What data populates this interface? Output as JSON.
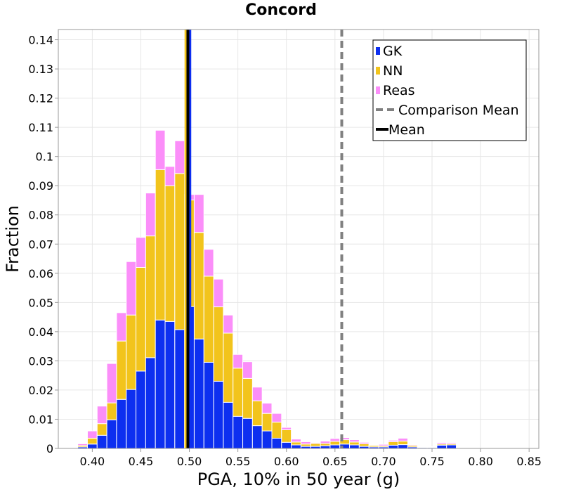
{
  "chart_data": {
    "type": "bar",
    "stacked": true,
    "title": "Concord",
    "xlabel": "PGA, 10% in 50 year (g)",
    "ylabel": "Fraction",
    "xlim": [
      0.365,
      0.86
    ],
    "ylim": [
      0,
      0.1435
    ],
    "bin_width": 0.01,
    "x_ticks": [
      "0.40",
      "0.45",
      "0.50",
      "0.55",
      "0.60",
      "0.65",
      "0.70",
      "0.75",
      "0.80",
      "0.85"
    ],
    "x_tick_values": [
      0.4,
      0.45,
      0.5,
      0.55,
      0.6,
      0.65,
      0.7,
      0.75,
      0.8,
      0.85
    ],
    "y_ticks": [
      "0",
      "0.01",
      "0.02",
      "0.03",
      "0.04",
      "0.05",
      "0.06",
      "0.07",
      "0.08",
      "0.09",
      "0.1",
      "0.11",
      "0.12",
      "0.13",
      "0.14"
    ],
    "y_tick_values": [
      0,
      0.01,
      0.02,
      0.03,
      0.04,
      0.05,
      0.06,
      0.07,
      0.08,
      0.09,
      0.1,
      0.11,
      0.12,
      0.13,
      0.14
    ],
    "bin_centers": [
      0.38,
      0.39,
      0.4,
      0.41,
      0.42,
      0.43,
      0.44,
      0.45,
      0.46,
      0.47,
      0.48,
      0.49,
      0.5,
      0.51,
      0.52,
      0.53,
      0.54,
      0.55,
      0.56,
      0.57,
      0.58,
      0.59,
      0.6,
      0.61,
      0.62,
      0.63,
      0.64,
      0.65,
      0.66,
      0.67,
      0.68,
      0.69,
      0.7,
      0.71,
      0.72,
      0.73,
      0.74,
      0.75,
      0.76,
      0.77,
      0.78,
      0.79,
      0.8,
      0.81,
      0.82,
      0.83,
      0.84
    ],
    "series": [
      {
        "name": "GK",
        "color": "#0d2ff0",
        "values": [
          0.0002,
          0.0005,
          0.0015,
          0.0045,
          0.0098,
          0.0168,
          0.0202,
          0.0265,
          0.0311,
          0.044,
          0.0435,
          0.0407,
          0.0486,
          0.0375,
          0.0295,
          0.023,
          0.0158,
          0.011,
          0.0103,
          0.0078,
          0.006,
          0.0035,
          0.0021,
          0.0012,
          0.0007,
          0.0007,
          0.0009,
          0.0012,
          0.0015,
          0.0012,
          0.0007,
          0.0005,
          0.0005,
          0.0011,
          0.0013,
          0.0005,
          0.0003,
          0.0003,
          0.0011,
          0.0012,
          0.0001,
          0.0001,
          0.0001,
          0.0001,
          0.0001,
          0.0001,
          0.0001
        ]
      },
      {
        "name": "NN",
        "color": "#f2c41c",
        "values": [
          0.0002,
          0.0005,
          0.002,
          0.004,
          0.0058,
          0.02,
          0.0255,
          0.0355,
          0.0417,
          0.0515,
          0.0465,
          0.0535,
          0.0365,
          0.0365,
          0.0295,
          0.0255,
          0.0237,
          0.0165,
          0.0137,
          0.0085,
          0.006,
          0.0055,
          0.0043,
          0.001,
          0.0008,
          0.001,
          0.0008,
          0.0012,
          0.0015,
          0.001,
          0.0009,
          0.0005,
          0.0004,
          0.0012,
          0.0012,
          0.0005,
          0.0002,
          0.0002,
          0.0004,
          0.0004,
          0.0001,
          0.0,
          0.0,
          0.0,
          0.0,
          0.0,
          0.0
        ]
      },
      {
        "name": "Reas",
        "color": "#fb8ef9",
        "values": [
          0.0001,
          0.0006,
          0.0025,
          0.006,
          0.0135,
          0.0097,
          0.0183,
          0.0103,
          0.0147,
          0.0135,
          0.0066,
          0.0112,
          0.0019,
          0.013,
          0.0092,
          0.0095,
          0.0062,
          0.0047,
          0.0057,
          0.0047,
          0.0035,
          0.003,
          0.0008,
          0.001,
          0.0008,
          0.0003,
          0.0008,
          0.001,
          0.0007,
          0.0008,
          0.0005,
          0.0002,
          0.0005,
          0.0005,
          0.001,
          0.0003,
          0.0002,
          0.0001,
          0.0005,
          0.0004,
          0.0001,
          0.0,
          0.0,
          0.0,
          0.0,
          0.0,
          0.0
        ]
      }
    ],
    "comparison_mean": 0.657,
    "means": [
      {
        "name": "GK",
        "value": 0.5005,
        "color": "#0d2ff0"
      },
      {
        "name": "NN",
        "value": 0.4965,
        "color": "#f2c41c"
      },
      {
        "name": "Mean",
        "value": 0.4985,
        "color": "#000000"
      }
    ],
    "legend": {
      "position": "top-right",
      "entries": [
        {
          "label": "GK",
          "color": "#0d2ff0",
          "style": "patch"
        },
        {
          "label": "NN",
          "color": "#f2c41c",
          "style": "patch"
        },
        {
          "label": "Reas",
          "color": "#fb8ef9",
          "style": "patch"
        },
        {
          "label": "Comparison Mean",
          "color": "#808080",
          "style": "dashed-line"
        },
        {
          "label": "Mean",
          "color": "#000000",
          "style": "solid-line"
        }
      ]
    },
    "grid": true
  }
}
